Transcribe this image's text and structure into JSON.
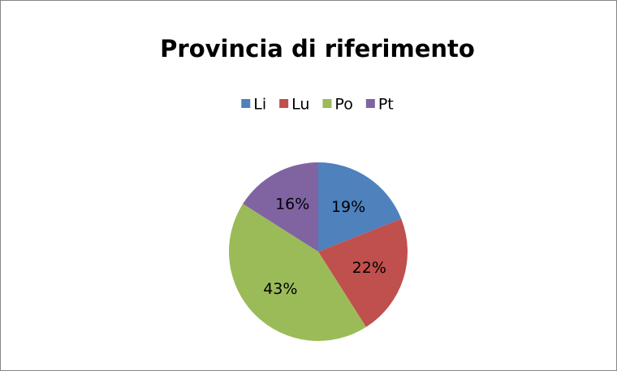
{
  "chart_data": {
    "type": "pie",
    "title": "Provincia di riferimento",
    "categories": [
      "Li",
      "Lu",
      "Po",
      "Pt"
    ],
    "values": [
      19,
      22,
      43,
      16
    ],
    "value_labels": [
      "19%",
      "22%",
      "43%",
      "16%"
    ],
    "colors": [
      "#4f81bd",
      "#c0504d",
      "#9bbb59",
      "#8064a2"
    ],
    "legend": "top"
  }
}
